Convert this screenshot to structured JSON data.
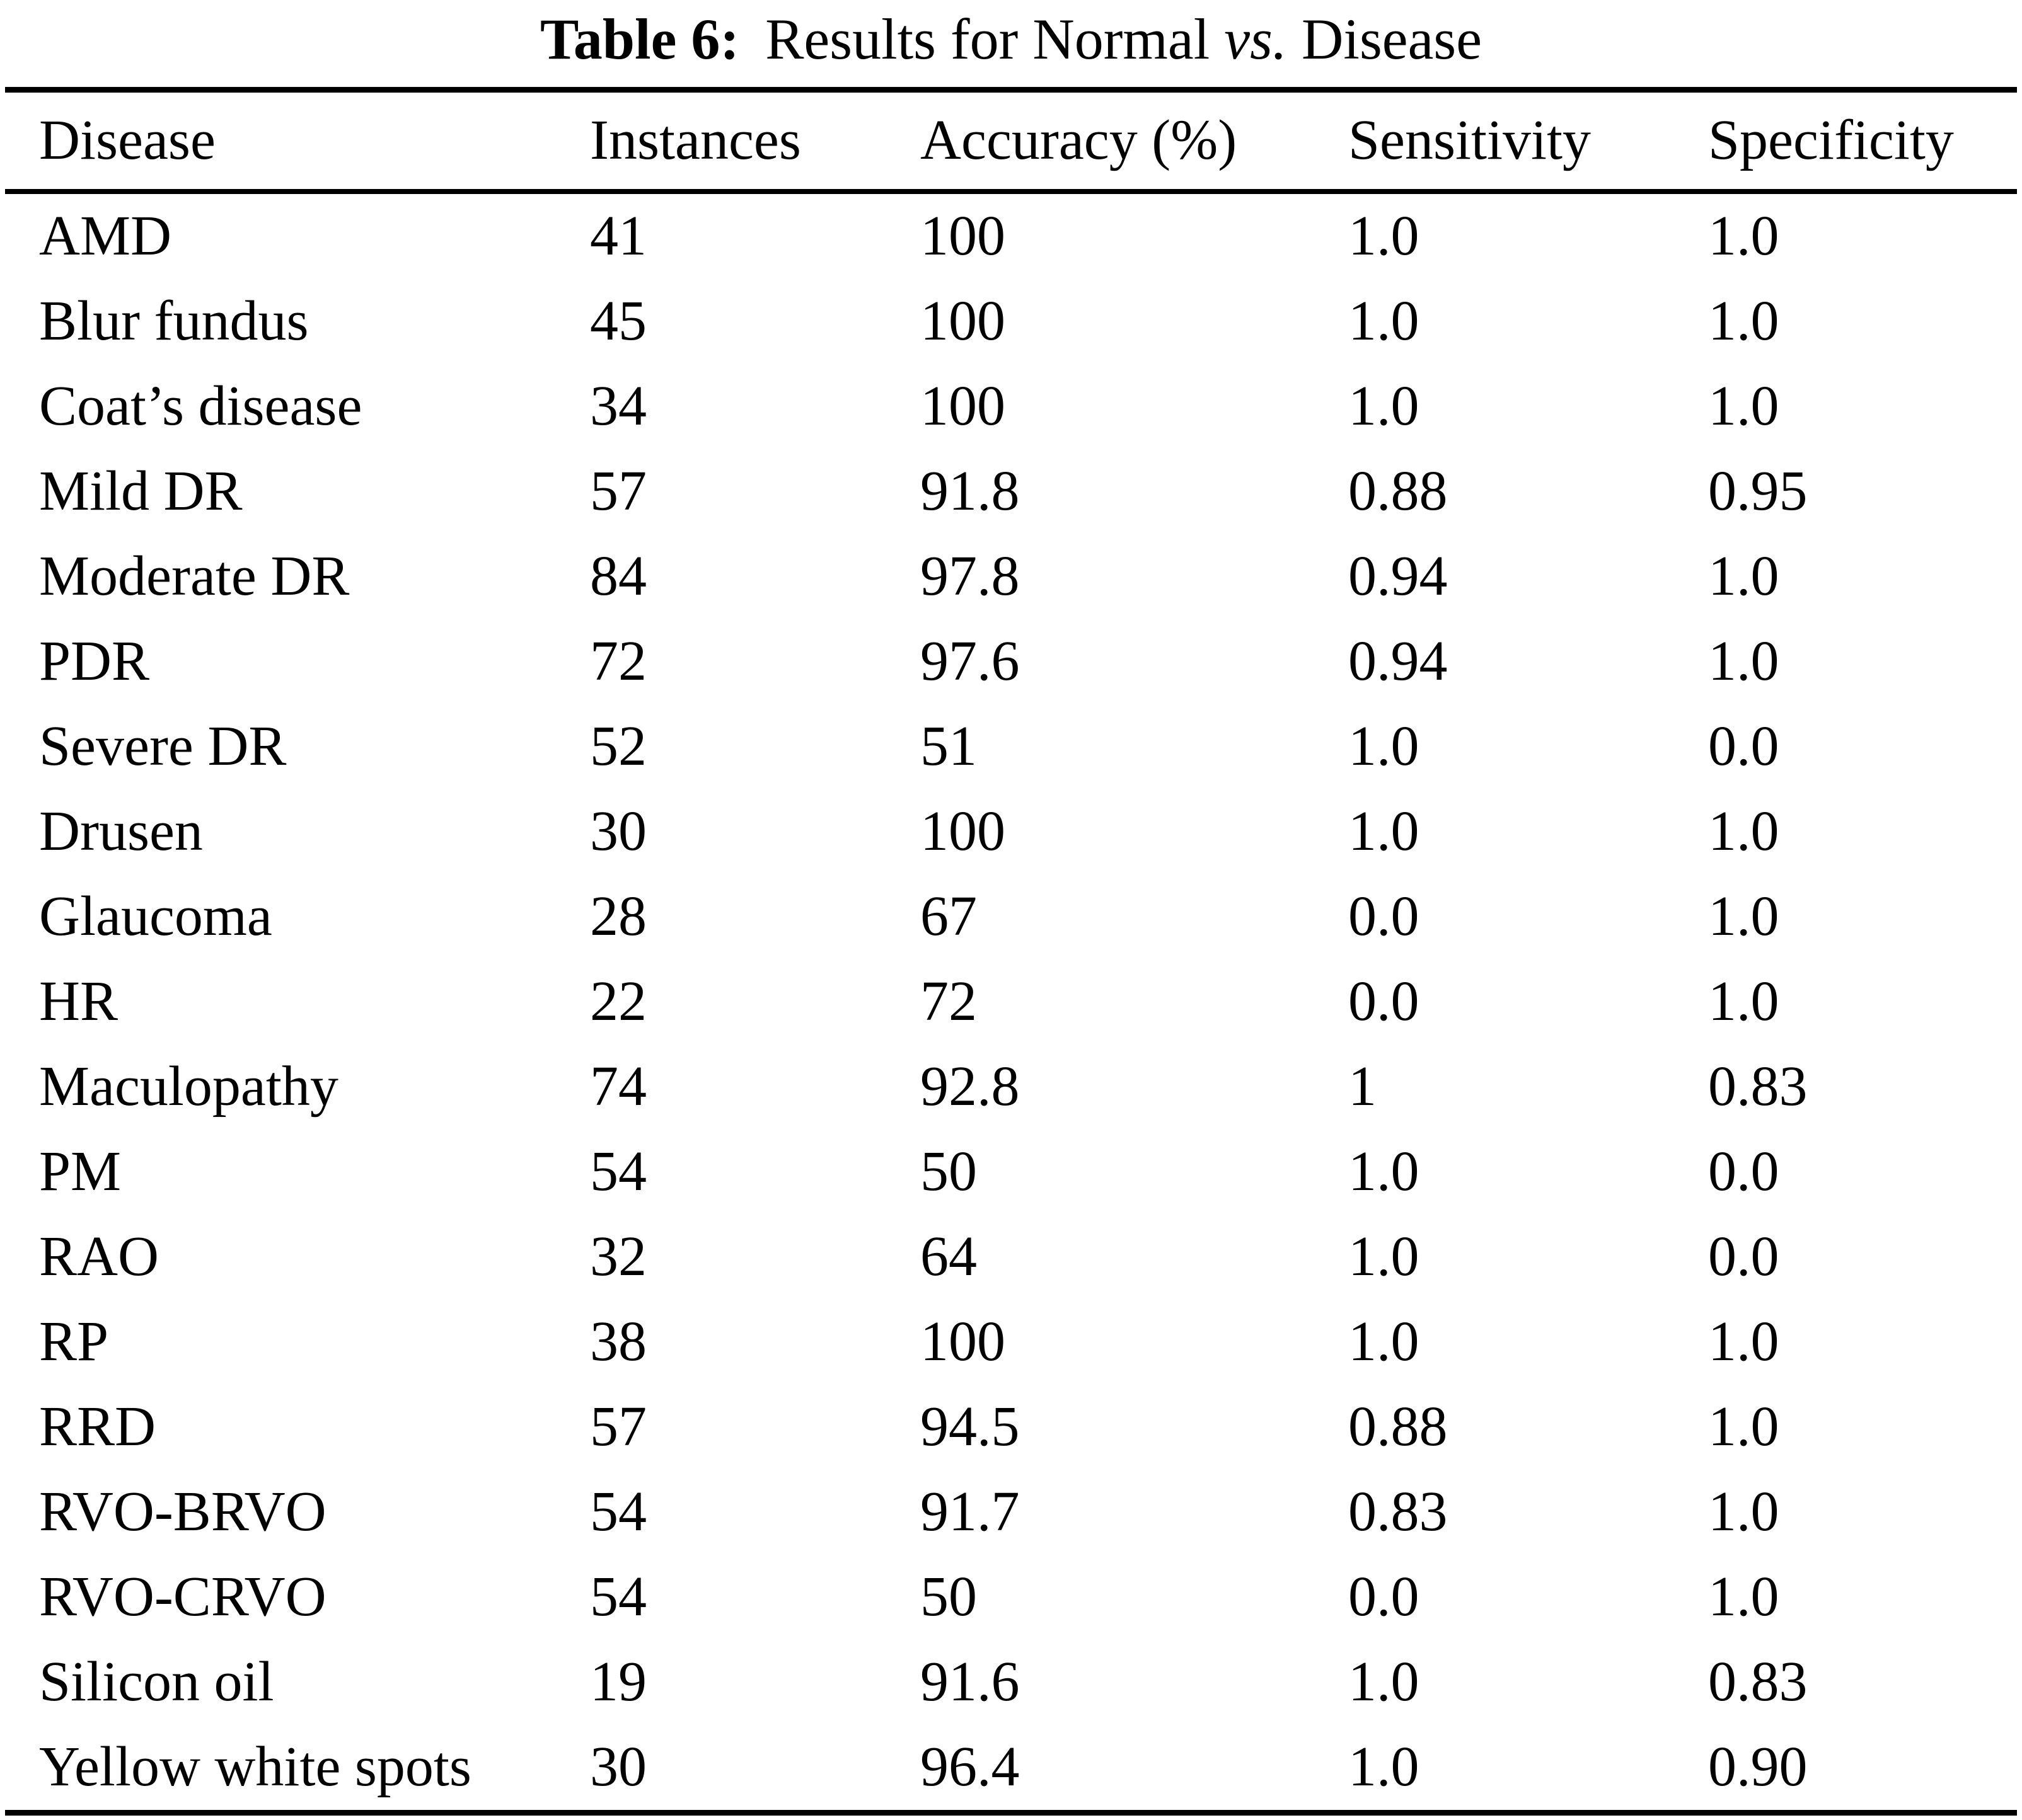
{
  "caption": {
    "label": "Table 6:",
    "before_vs": "Results for Normal",
    "vs": "vs.",
    "after_vs": "Disease"
  },
  "table": {
    "columns": [
      "Disease",
      "Instances",
      "Accuracy (%)",
      "Sensitivity",
      "Specificity"
    ],
    "rows": [
      [
        "AMD",
        "41",
        "100",
        "1.0",
        "1.0"
      ],
      [
        "Blur fundus",
        "45",
        "100",
        "1.0",
        "1.0"
      ],
      [
        "Coat’s disease",
        "34",
        "100",
        "1.0",
        "1.0"
      ],
      [
        "Mild DR",
        "57",
        "91.8",
        "0.88",
        "0.95"
      ],
      [
        "Moderate DR",
        "84",
        "97.8",
        "0.94",
        "1.0"
      ],
      [
        "PDR",
        "72",
        "97.6",
        "0.94",
        "1.0"
      ],
      [
        "Severe DR",
        "52",
        "51",
        "1.0",
        "0.0"
      ],
      [
        "Drusen",
        "30",
        "100",
        "1.0",
        "1.0"
      ],
      [
        "Glaucoma",
        "28",
        "67",
        "0.0",
        "1.0"
      ],
      [
        "HR",
        "22",
        "72",
        "0.0",
        "1.0"
      ],
      [
        "Maculopathy",
        "74",
        "92.8",
        "1",
        "0.83"
      ],
      [
        "PM",
        "54",
        "50",
        "1.0",
        "0.0"
      ],
      [
        "RAO",
        "32",
        "64",
        "1.0",
        "0.0"
      ],
      [
        "RP",
        "38",
        "100",
        "1.0",
        "1.0"
      ],
      [
        "RRD",
        "57",
        "94.5",
        "0.88",
        "1.0"
      ],
      [
        "RVO-BRVO",
        "54",
        "91.7",
        "0.83",
        "1.0"
      ],
      [
        "RVO-CRVO",
        "54",
        "50",
        "0.0",
        "1.0"
      ],
      [
        "Silicon oil",
        "19",
        "91.6",
        "1.0",
        "0.83"
      ],
      [
        "Yellow white spots",
        "30",
        "96.4",
        "1.0",
        "0.90"
      ]
    ]
  },
  "colors": {
    "text": "#000000",
    "background": "#ffffff",
    "rule": "#000000"
  }
}
